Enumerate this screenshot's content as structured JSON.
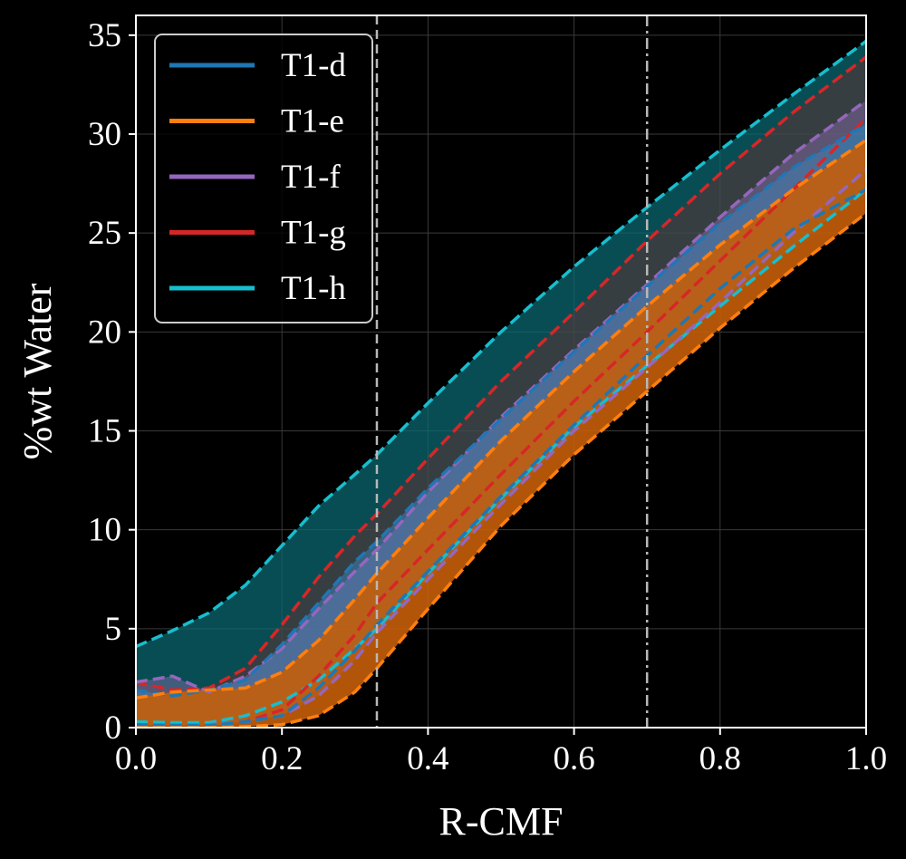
{
  "chart_data": {
    "type": "area",
    "xlabel": "R-CMF",
    "ylabel": "%wt Water",
    "xlim": [
      0.0,
      1.0
    ],
    "ylim": [
      0,
      36
    ],
    "x_ticks": [
      "0.0",
      "0.2",
      "0.4",
      "0.6",
      "0.8",
      "1.0"
    ],
    "x_tick_values": [
      0.0,
      0.2,
      0.4,
      0.6,
      0.8,
      1.0
    ],
    "y_ticks": [
      "0",
      "5",
      "10",
      "15",
      "20",
      "25",
      "30",
      "35"
    ],
    "y_tick_values": [
      0,
      5,
      10,
      15,
      20,
      25,
      30,
      35
    ],
    "grid": true,
    "legend_position": "upper-left",
    "vertical_lines": [
      {
        "x": 0.33,
        "style": "dashed",
        "color": "#b8b8b8"
      },
      {
        "x": 0.7,
        "style": "dashdot",
        "color": "#b8b8b8"
      }
    ],
    "x": [
      0.0,
      0.05,
      0.1,
      0.15,
      0.2,
      0.25,
      0.3,
      0.33,
      0.4,
      0.5,
      0.6,
      0.7,
      0.8,
      0.9,
      1.0
    ],
    "series": [
      {
        "name": "T1-h",
        "color": "#17becf",
        "fill": "#0b6b73",
        "fill_opacity": 0.72,
        "upper": [
          4.1,
          4.9,
          5.8,
          7.2,
          9.2,
          11.2,
          12.8,
          13.8,
          16.4,
          20.0,
          23.3,
          26.3,
          29.2,
          32.0,
          34.7
        ],
        "lower": [
          0.3,
          0.25,
          0.25,
          0.6,
          1.3,
          2.4,
          4.0,
          5.0,
          7.8,
          11.6,
          15.2,
          18.3,
          21.3,
          24.3,
          27.2
        ]
      },
      {
        "name": "T1-g",
        "color": "#d62728",
        "fill": "#7a2a28",
        "fill_opacity": 0.42,
        "upper": [
          2.3,
          1.9,
          2.0,
          3.0,
          5.2,
          7.6,
          9.7,
          10.8,
          13.6,
          17.5,
          21.0,
          24.6,
          28.0,
          31.1,
          33.9
        ],
        "lower": [
          0.1,
          0.1,
          0.1,
          0.3,
          0.9,
          2.6,
          4.7,
          6.3,
          9.0,
          12.8,
          16.5,
          20.0,
          23.6,
          27.2,
          30.8
        ]
      },
      {
        "name": "T1-f",
        "color": "#9467bd",
        "fill": "#8a6fb0",
        "fill_opacity": 0.45,
        "upper": [
          2.3,
          2.6,
          1.8,
          2.6,
          4.0,
          6.0,
          7.9,
          9.0,
          11.9,
          15.7,
          19.1,
          22.4,
          25.8,
          29.0,
          31.7
        ],
        "lower": [
          0.15,
          0.15,
          0.15,
          0.3,
          0.6,
          1.6,
          3.4,
          4.8,
          7.5,
          11.3,
          15.0,
          18.2,
          21.5,
          25.0,
          28.2
        ]
      },
      {
        "name": "T1-d",
        "color": "#1f77b4",
        "fill": "#3e86c0",
        "fill_opacity": 0.5,
        "upper": [
          1.9,
          1.6,
          1.9,
          2.4,
          4.2,
          6.3,
          8.4,
          9.4,
          12.1,
          15.6,
          19.0,
          22.3,
          25.5,
          28.3,
          30.5
        ],
        "lower": [
          0.15,
          0.1,
          0.1,
          0.3,
          0.6,
          2.0,
          3.9,
          5.2,
          7.9,
          11.7,
          15.3,
          18.8,
          22.2,
          25.2,
          27.2
        ]
      },
      {
        "name": "T1-e",
        "color": "#ff7f0e",
        "fill": "#c55e0a",
        "fill_opacity": 0.9,
        "upper": [
          1.5,
          1.8,
          1.9,
          2.0,
          2.8,
          4.4,
          6.5,
          7.8,
          10.6,
          14.5,
          18.0,
          21.3,
          24.4,
          27.2,
          29.7
        ],
        "lower": [
          0.0,
          0.0,
          0.0,
          0.05,
          0.15,
          0.6,
          1.8,
          3.0,
          6.0,
          10.2,
          13.8,
          17.0,
          20.2,
          23.2,
          26.0
        ]
      }
    ],
    "legend_order": [
      "T1-d",
      "T1-e",
      "T1-f",
      "T1-g",
      "T1-h"
    ]
  }
}
